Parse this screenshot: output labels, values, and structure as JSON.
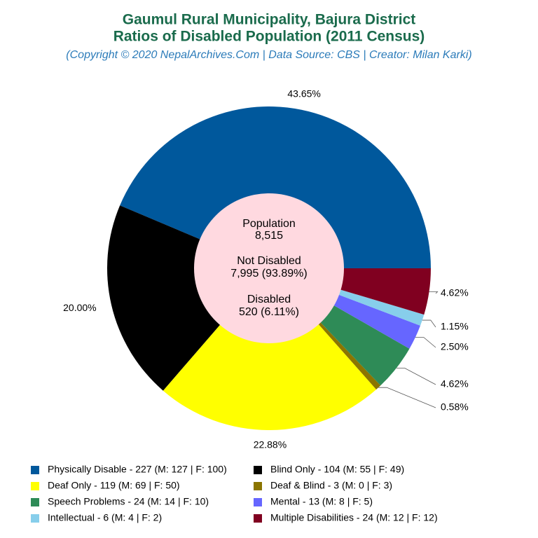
{
  "chart_data": {
    "type": "pie",
    "title": "Gaumul Rural Municipality, Bajura District",
    "subtitle": "Ratios of Disabled Population (2011 Census)",
    "caption": "(Copyright © 2020 NepalArchives.Com | Data Source: CBS | Creator: Milan Karki)",
    "categories": [
      "Physically Disable - 227 (M: 127 | F: 100)",
      "Blind Only - 104 (M: 55 | F: 49)",
      "Deaf Only - 119 (M: 69 | F: 50)",
      "Deaf & Blind - 3 (M: 0 | F: 3)",
      "Speech Problems - 24 (M: 14 | F: 10)",
      "Mental - 13 (M: 8 | F: 5)",
      "Intellectual - 6 (M: 4 | F: 2)",
      "Multiple Disabilities - 24 (M: 12 | F: 12)"
    ],
    "values": [
      43.65,
      20.0,
      22.88,
      0.58,
      4.62,
      2.5,
      1.15,
      4.62
    ],
    "value_labels": [
      "43.65%",
      "20.00%",
      "22.88%",
      "0.58%",
      "4.62%",
      "2.50%",
      "1.15%",
      "4.62%"
    ],
    "colors": [
      "#00589c",
      "#000000",
      "#ffff00",
      "#8b7500",
      "#2e8b57",
      "#6666ff",
      "#87ceeb",
      "#800020"
    ],
    "center_labels": [
      "Population",
      "8,515",
      "Not Disabled",
      "7,995 (93.89%)",
      "Disabled",
      "520 (6.11%)"
    ]
  }
}
